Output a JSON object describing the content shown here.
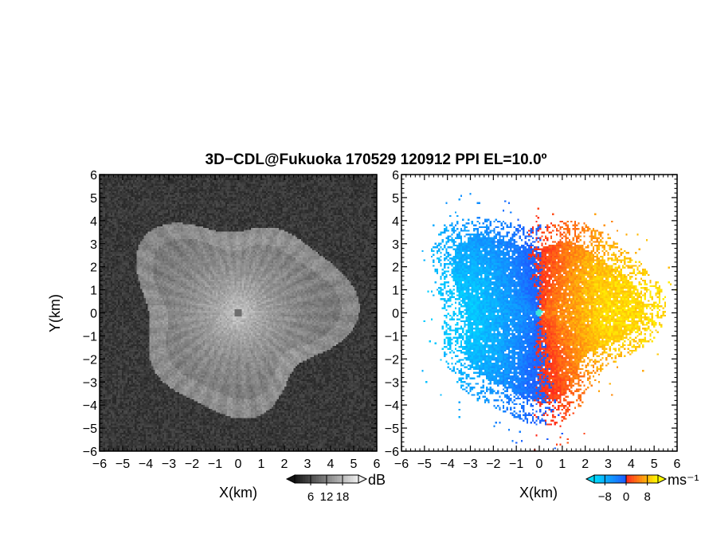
{
  "chart_data": [
    {
      "type": "heatmap",
      "panel": "reflectivity",
      "title": "3D−CDL@Fukuoka 170529 120912 PPI EL=10.0º",
      "xlabel": "X(km)",
      "ylabel": "Y(km)",
      "xlim": [
        -6,
        6
      ],
      "ylim": [
        -6,
        6
      ],
      "xticks": [
        "−6",
        "−5",
        "−4",
        "−3",
        "−2",
        "−1",
        "0",
        "1",
        "2",
        "3",
        "4",
        "5",
        "6"
      ],
      "yticks": [
        "−6",
        "−5",
        "−4",
        "−3",
        "−2",
        "−1",
        "0",
        "1",
        "2",
        "3",
        "4",
        "5",
        "6"
      ],
      "colormap": "grayscale",
      "colorbar": {
        "unit": "dB",
        "ticks": [
          "6",
          "12",
          "18"
        ],
        "range": [
          0,
          24
        ]
      }
    },
    {
      "type": "heatmap",
      "panel": "doppler_velocity",
      "xlabel": "X(km)",
      "xlim": [
        -6,
        6
      ],
      "ylim": [
        -6,
        6
      ],
      "xticks": [
        "−6",
        "−5",
        "−4",
        "−3",
        "−2",
        "−1",
        "0",
        "1",
        "2",
        "3",
        "4",
        "5",
        "6"
      ],
      "yticks": [
        "−6",
        "−5",
        "−4",
        "−3",
        "−2",
        "−1",
        "0",
        "1",
        "2",
        "3",
        "4",
        "5",
        "6"
      ],
      "colormap": "cyan-blue-red-yellow diverging",
      "colorbar": {
        "unit": "ms⁻¹",
        "ticks": [
          "−8",
          "0",
          "8"
        ],
        "range": [
          -12,
          12
        ]
      }
    }
  ]
}
